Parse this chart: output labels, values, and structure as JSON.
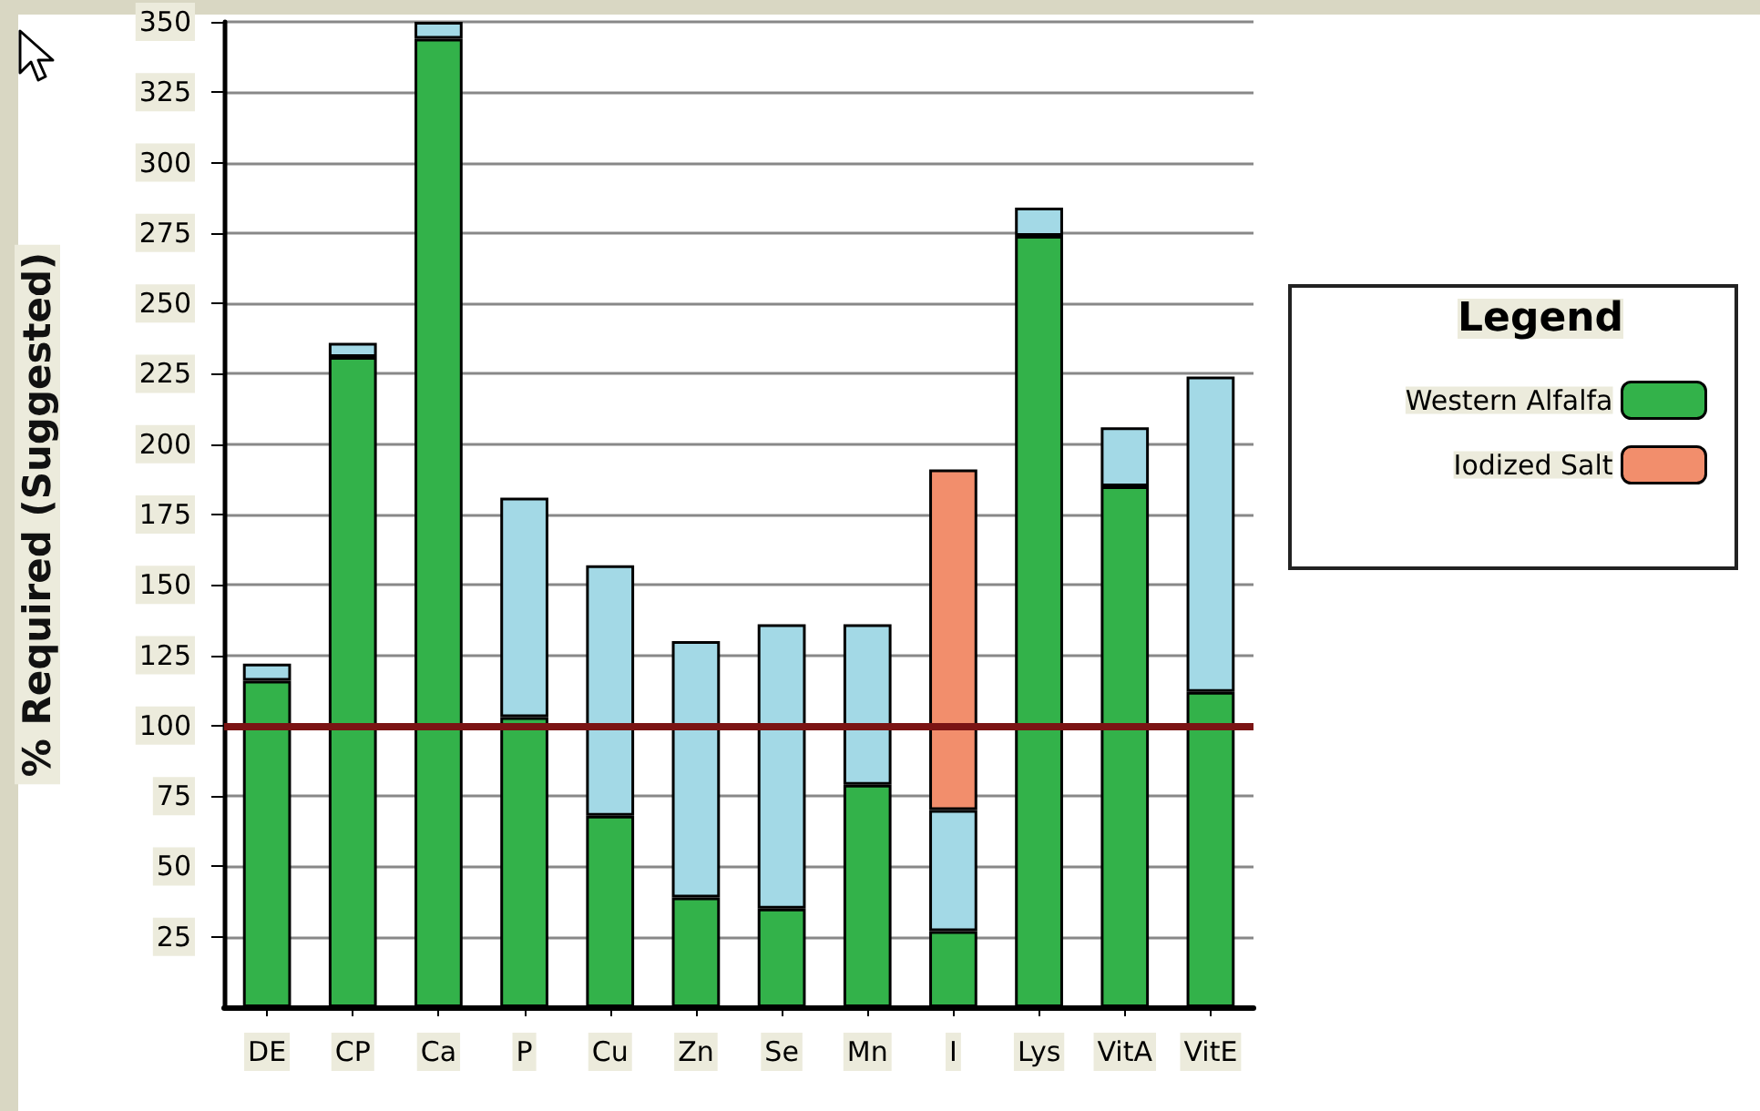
{
  "chart_data": {
    "type": "bar",
    "stacked": true,
    "ylabel": "% Required (Suggested)",
    "legend_title": "Legend",
    "categories": [
      "DE",
      "CP",
      "Ca",
      "P",
      "Cu",
      "Zn",
      "Se",
      "Mn",
      "I",
      "Lys",
      "VitA",
      "VitE"
    ],
    "series": [
      {
        "name": "Western Alfalfa",
        "color": "#33b24a",
        "values": [
          116,
          231,
          344,
          103,
          68,
          39,
          35,
          79,
          27,
          274,
          185,
          112
        ]
      },
      {
        "color": "#a3d9e6",
        "values": [
          6,
          5,
          6,
          78,
          89,
          91,
          101,
          57,
          43,
          10,
          21,
          112
        ]
      },
      {
        "name": "Iodized Salt",
        "color": "#f28e6c",
        "values": [
          null,
          null,
          null,
          null,
          null,
          null,
          null,
          null,
          121,
          null,
          null,
          null
        ]
      }
    ],
    "ylim": [
      0,
      350
    ],
    "yticks": [
      25,
      50,
      75,
      100,
      125,
      150,
      175,
      200,
      225,
      250,
      275,
      300,
      325,
      350
    ],
    "grid": "y",
    "legend": "right",
    "ref_lines": [
      {
        "axis": "y",
        "value": 100,
        "color": "#7b1414"
      }
    ]
  }
}
